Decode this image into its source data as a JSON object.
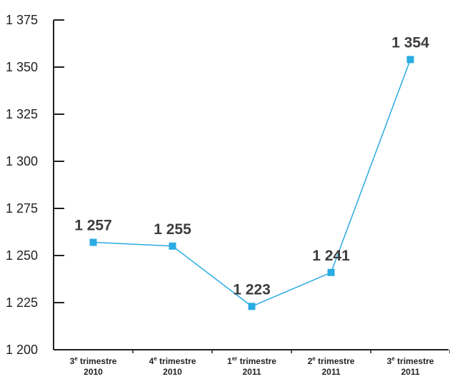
{
  "chart_data": {
    "type": "line",
    "title": "",
    "xlabel": "",
    "ylabel": "",
    "ylim": [
      1200,
      1375
    ],
    "yticks": [
      1200,
      1225,
      1250,
      1275,
      1300,
      1325,
      1350,
      1375
    ],
    "ytick_labels": [
      "1 200",
      "1 225",
      "1 250",
      "1 275",
      "1 300",
      "1 325",
      "1 350",
      "1 375"
    ],
    "categories": [
      {
        "ordinal": "3",
        "sup": "e",
        "word": "trimestre",
        "year": "2010"
      },
      {
        "ordinal": "4",
        "sup": "e",
        "word": "trimestre",
        "year": "2010"
      },
      {
        "ordinal": "1",
        "sup": "er",
        "word": "trimestre",
        "year": "2011"
      },
      {
        "ordinal": "2",
        "sup": "e",
        "word": "trimestre",
        "year": "2011"
      },
      {
        "ordinal": "3",
        "sup": "e",
        "word": "trimestre",
        "year": "2011"
      }
    ],
    "values": [
      1257,
      1255,
      1223,
      1241,
      1354
    ],
    "data_labels": [
      "1 257",
      "1 255",
      "1 223",
      "1 241",
      "1 354"
    ],
    "grid": false,
    "line_color": "#29abe2",
    "axis_color": "#231f20"
  }
}
